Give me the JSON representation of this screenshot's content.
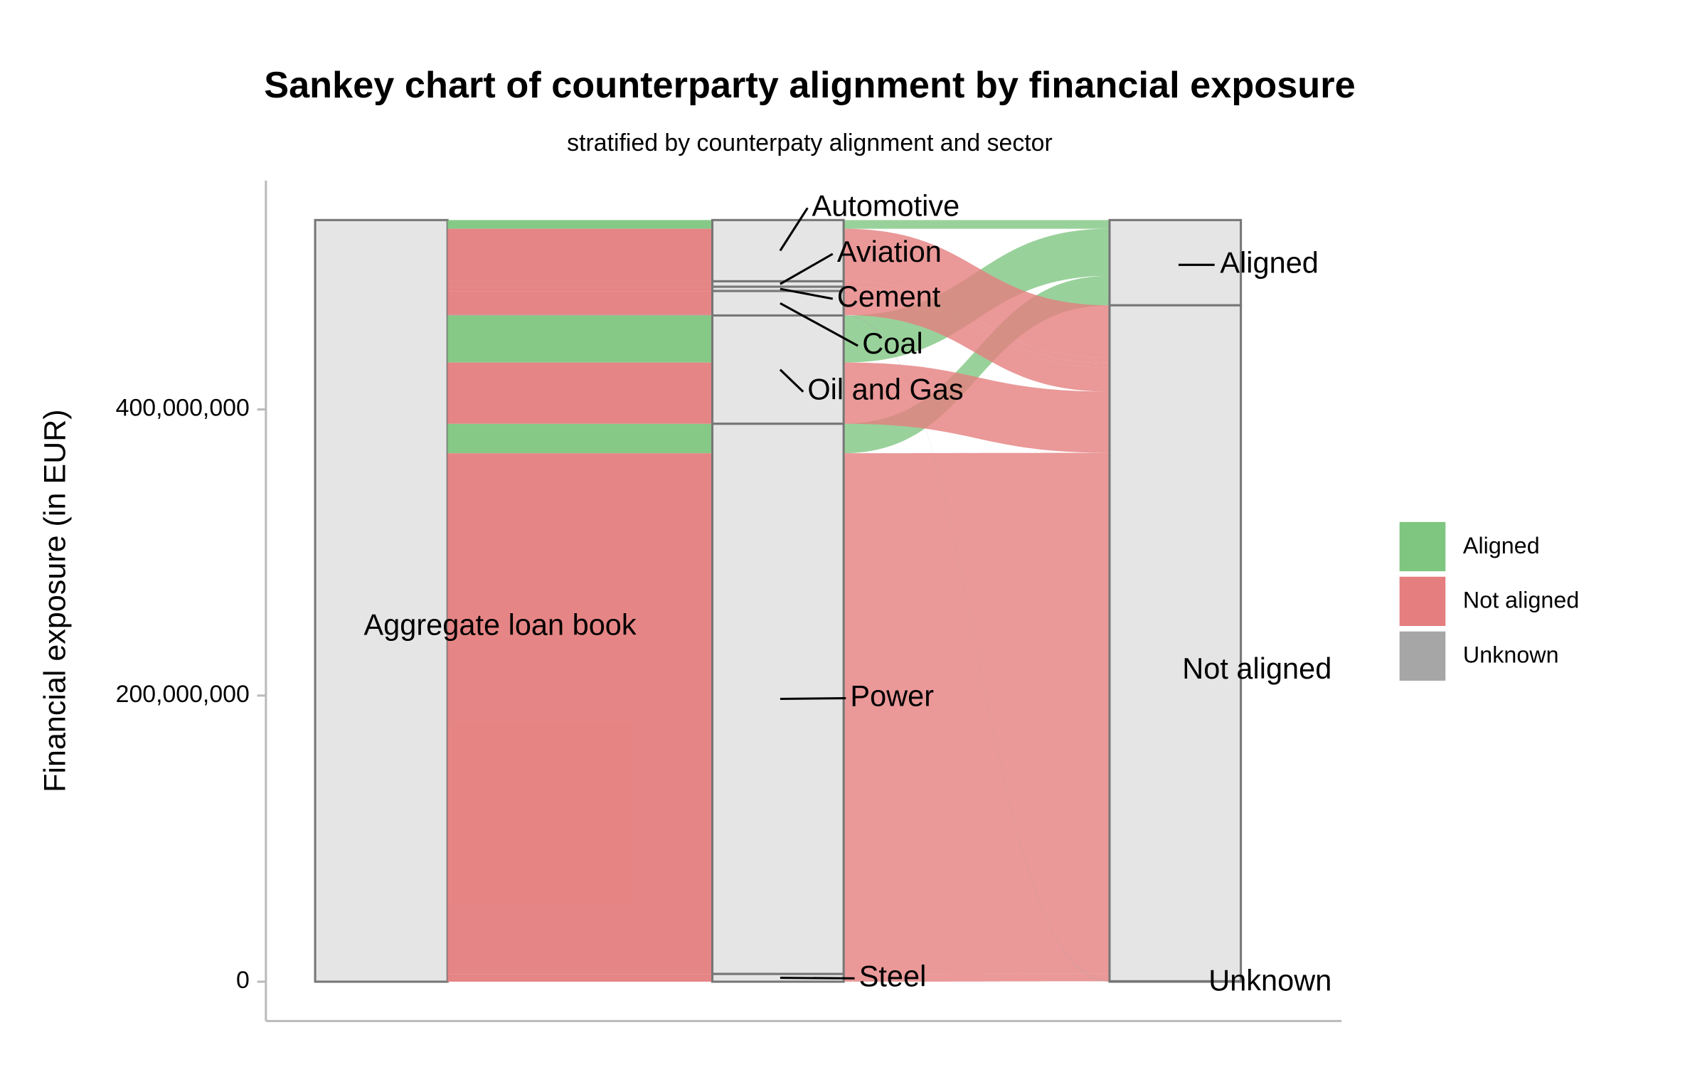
{
  "chart_data": {
    "type": "alluvial",
    "title": "Sankey chart of counterparty alignment by financial exposure",
    "subtitle": "stratified by counterpaty alignment and sector",
    "y_label": "Financial exposure (in EUR)",
    "source": "Aggregate loan book",
    "categories": [
      "Automotive",
      "Aviation",
      "Cement",
      "Coal",
      "Oil and Gas",
      "Power",
      "Steel"
    ],
    "series": [
      {
        "name": "Aligned",
        "color": "#7fc681",
        "values": [
          6100000,
          0,
          0,
          0,
          32900000,
          20600000,
          0
        ]
      },
      {
        "name": "Not aligned",
        "color": "#e57e7e",
        "values": [
          36700000,
          3800000,
          3000000,
          16800000,
          42800000,
          364000000,
          5400000
        ]
      },
      {
        "name": "Unknown",
        "color": "#a6a6a6",
        "values": [
          0,
          0,
          0,
          300000,
          0,
          0,
          0
        ]
      }
    ],
    "ylim": [
      -27500000,
      560000000
    ],
    "yticks": [
      {
        "value": 0,
        "label": "0"
      },
      {
        "value": 200000000,
        "label": "200,000,000"
      },
      {
        "value": 400000000,
        "label": "400,000,000"
      }
    ],
    "legend": "right"
  }
}
